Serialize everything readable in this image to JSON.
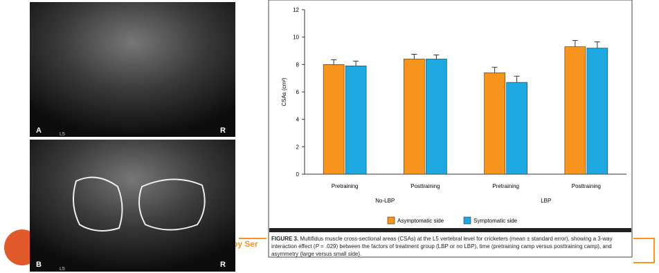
{
  "chart_data": {
    "type": "bar",
    "ylabel": "CSAs (cm²)",
    "categories": [
      "Pretraining",
      "Posttraining",
      "Pretraining",
      "Posttraining"
    ],
    "groups": [
      "No-LBP",
      "LBP"
    ],
    "series": [
      {
        "name": "Asymptomatic side",
        "color": "#f7941d",
        "values": [
          8.0,
          8.4,
          7.4,
          9.3
        ],
        "errors": [
          0.35,
          0.35,
          0.4,
          0.45
        ]
      },
      {
        "name": "Symptomatic side",
        "color": "#1ea8e0",
        "values": [
          7.9,
          8.4,
          6.7,
          9.2
        ],
        "errors": [
          0.35,
          0.3,
          0.45,
          0.45
        ]
      }
    ],
    "ylim": [
      0,
      12
    ],
    "yticks": [
      0,
      2,
      4,
      6,
      8,
      10,
      12
    ]
  },
  "caption": {
    "label": "FIGURE 3.",
    "before": " Multifidus muscle cross-sectional areas (CSAs) at the L5 vertebral level for cricketers (mean ± standard error), showing a 3-way interaction effect (",
    "italic": "P",
    "after": " = .029) between the factors of treatment group (LBP or no LBP), time (pretraining camp versus posttraining camp), and asymmetry (large versus small side)."
  },
  "ultrasound": {
    "panels": [
      {
        "letter": "A",
        "side": "R",
        "level": "L5"
      },
      {
        "letter": "B",
        "side": "R",
        "level": "L5"
      }
    ]
  },
  "slide_text": "py Ser"
}
